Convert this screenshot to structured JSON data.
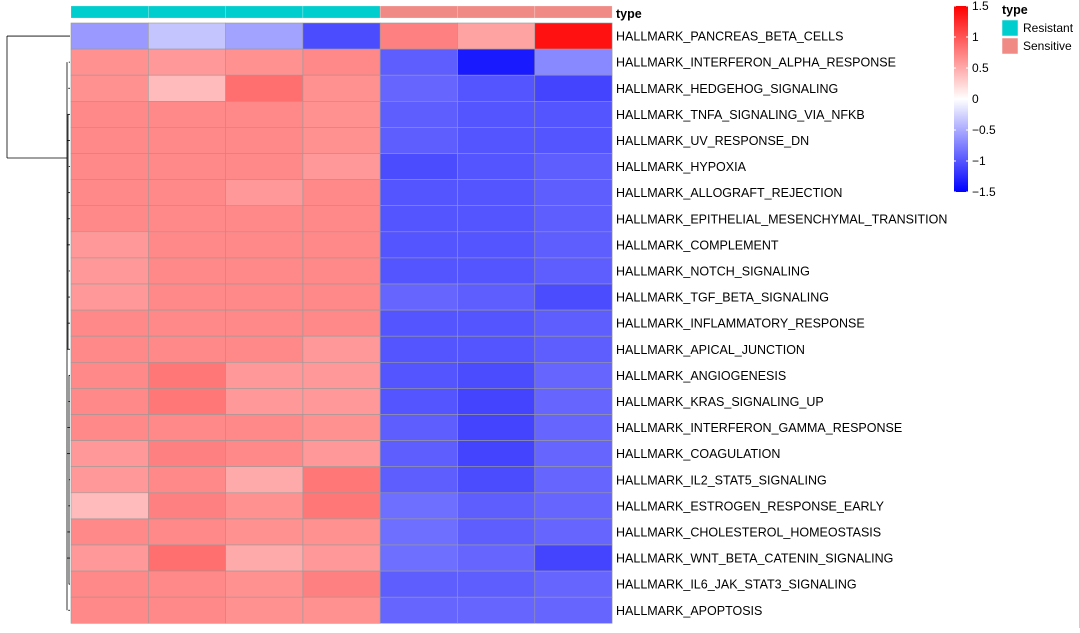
{
  "chart_data": {
    "type": "heatmap",
    "annotation_title": "type",
    "sample_groups": [
      "Resistant",
      "Resistant",
      "Resistant",
      "Resistant",
      "Sensitive",
      "Sensitive",
      "Sensitive"
    ],
    "rows": [
      "HALLMARK_PANCREAS_BETA_CELLS",
      "HALLMARK_INTERFERON_ALPHA_RESPONSE",
      "HALLMARK_HEDGEHOG_SIGNALING",
      "HALLMARK_TNFA_SIGNALING_VIA_NFKB",
      "HALLMARK_UV_RESPONSE_DN",
      "HALLMARK_HYPOXIA",
      "HALLMARK_ALLOGRAFT_REJECTION",
      "HALLMARK_EPITHELIAL_MESENCHYMAL_TRANSITION",
      "HALLMARK_COMPLEMENT",
      "HALLMARK_NOTCH_SIGNALING",
      "HALLMARK_TGF_BETA_SIGNALING",
      "HALLMARK_INFLAMMATORY_RESPONSE",
      "HALLMARK_APICAL_JUNCTION",
      "HALLMARK_ANGIOGENESIS",
      "HALLMARK_KRAS_SIGNALING_UP",
      "HALLMARK_INTERFERON_GAMMA_RESPONSE",
      "HALLMARK_COAGULATION",
      "HALLMARK_IL2_STAT5_SIGNALING",
      "HALLMARK_ESTROGEN_RESPONSE_EARLY",
      "HALLMARK_CHOLESTEROL_HOMEOSTASIS",
      "HALLMARK_WNT_BETA_CATENIN_SIGNALING",
      "HALLMARK_IL6_JAK_STAT3_SIGNALING",
      "HALLMARK_APOPTOSIS"
    ],
    "values": [
      [
        -0.6,
        -0.35,
        -0.55,
        -1.05,
        0.75,
        0.55,
        1.4
      ],
      [
        0.65,
        0.6,
        0.65,
        0.7,
        -0.95,
        -1.35,
        -0.7
      ],
      [
        0.65,
        0.4,
        0.85,
        0.65,
        -0.9,
        -1.0,
        -1.1
      ],
      [
        0.7,
        0.7,
        0.7,
        0.65,
        -0.95,
        -1.0,
        -1.0
      ],
      [
        0.7,
        0.7,
        0.7,
        0.65,
        -0.95,
        -1.0,
        -1.0
      ],
      [
        0.7,
        0.7,
        0.7,
        0.6,
        -1.05,
        -1.0,
        -0.95
      ],
      [
        0.7,
        0.7,
        0.6,
        0.7,
        -1.0,
        -1.0,
        -0.95
      ],
      [
        0.7,
        0.7,
        0.7,
        0.7,
        -1.0,
        -1.0,
        -0.95
      ],
      [
        0.6,
        0.7,
        0.7,
        0.7,
        -1.0,
        -1.0,
        -0.95
      ],
      [
        0.6,
        0.7,
        0.7,
        0.7,
        -1.0,
        -1.0,
        -0.95
      ],
      [
        0.6,
        0.7,
        0.7,
        0.7,
        -0.9,
        -0.95,
        -1.05
      ],
      [
        0.7,
        0.7,
        0.7,
        0.7,
        -1.0,
        -1.0,
        -0.95
      ],
      [
        0.7,
        0.7,
        0.7,
        0.6,
        -1.0,
        -1.0,
        -0.95
      ],
      [
        0.7,
        0.8,
        0.6,
        0.6,
        -1.0,
        -1.05,
        -0.9
      ],
      [
        0.7,
        0.8,
        0.6,
        0.6,
        -1.0,
        -1.1,
        -0.9
      ],
      [
        0.7,
        0.7,
        0.7,
        0.65,
        -0.95,
        -1.1,
        -0.9
      ],
      [
        0.6,
        0.75,
        0.7,
        0.6,
        -0.95,
        -1.1,
        -0.9
      ],
      [
        0.6,
        0.7,
        0.5,
        0.8,
        -0.95,
        -1.05,
        -0.9
      ],
      [
        0.4,
        0.75,
        0.65,
        0.8,
        -0.85,
        -0.95,
        -0.9
      ],
      [
        0.7,
        0.7,
        0.65,
        0.65,
        -0.85,
        -0.95,
        -0.9
      ],
      [
        0.6,
        0.85,
        0.5,
        0.6,
        -0.85,
        -0.9,
        -1.1
      ],
      [
        0.7,
        0.7,
        0.65,
        0.75,
        -0.95,
        -0.95,
        -0.9
      ],
      [
        0.7,
        0.7,
        0.65,
        0.65,
        -0.9,
        -0.9,
        -0.9
      ]
    ],
    "color_scale": {
      "low": "#0000ff",
      "mid": "#ffffff",
      "high": "#ff0000",
      "min": -1.5,
      "max": 1.5,
      "ticks": [
        "1.5",
        "1",
        "0.5",
        "0",
        "−0.5",
        "−1",
        "−1.5"
      ]
    },
    "annotation_legend": {
      "title": "type",
      "items": [
        {
          "label": "Resistant",
          "color": "#00cdcd"
        },
        {
          "label": "Sensitive",
          "color": "#f08a85"
        }
      ]
    },
    "dendrogram": "rows"
  }
}
